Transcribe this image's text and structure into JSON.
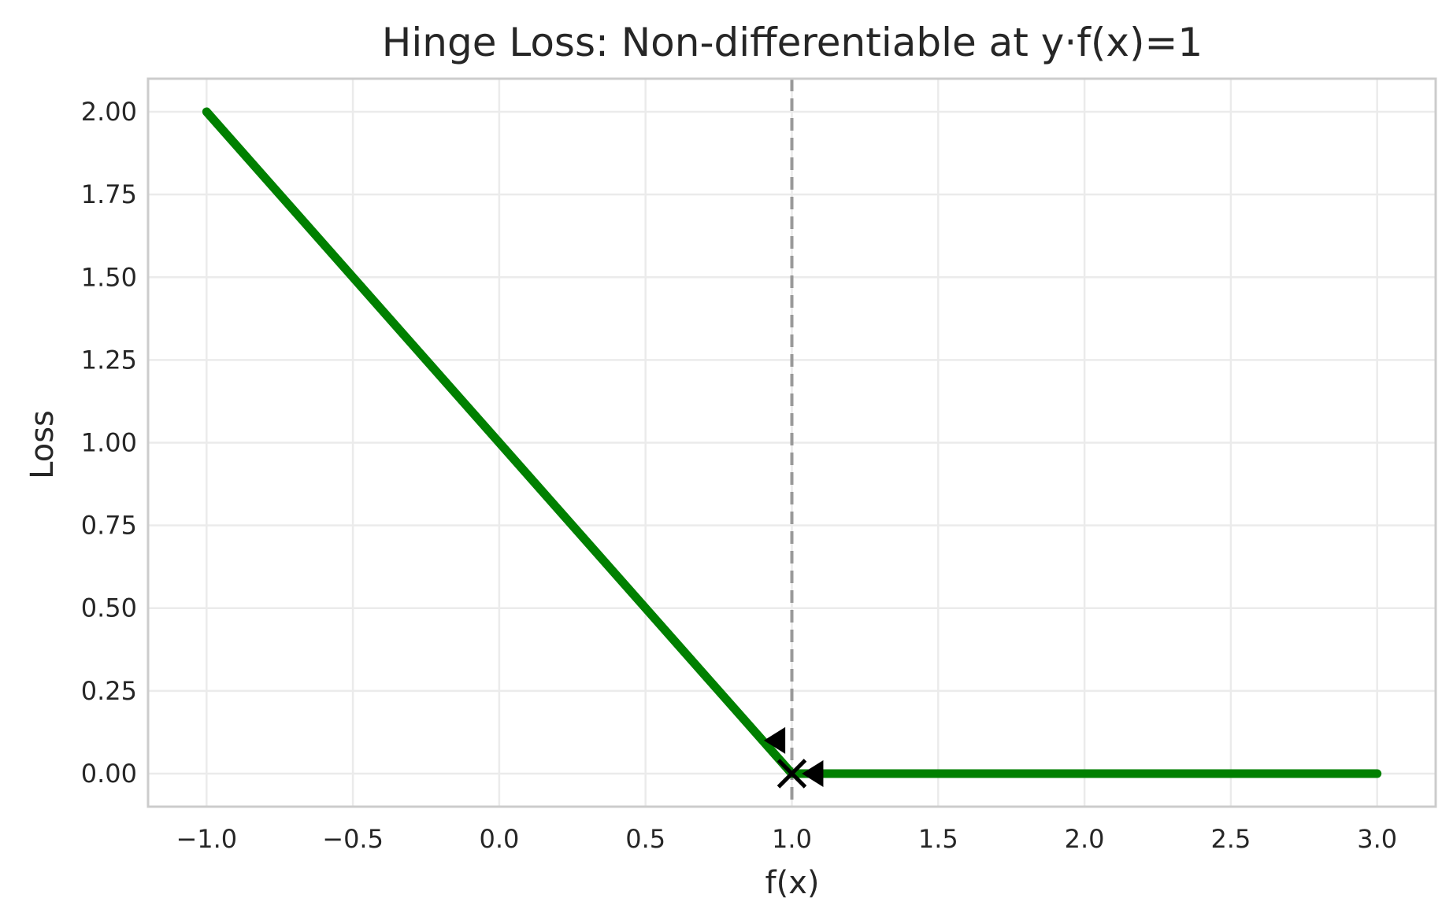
{
  "chart_data": {
    "type": "line",
    "title": "Hinge Loss: Non-differentiable at y·f(x)=1",
    "xlabel": "f(x)",
    "ylabel": "Loss",
    "xlim": [
      -1.2,
      3.2
    ],
    "ylim": [
      -0.1,
      2.1
    ],
    "x_ticks": [
      -1.0,
      -0.5,
      0.0,
      0.5,
      1.0,
      1.5,
      2.0,
      2.5,
      3.0
    ],
    "x_tick_labels": [
      "−1.0",
      "−0.5",
      "0.0",
      "0.5",
      "1.0",
      "1.5",
      "2.0",
      "2.5",
      "3.0"
    ],
    "y_ticks": [
      0.0,
      0.25,
      0.5,
      0.75,
      1.0,
      1.25,
      1.5,
      1.75,
      2.0
    ],
    "y_tick_labels": [
      "0.00",
      "0.25",
      "0.50",
      "0.75",
      "1.00",
      "1.25",
      "1.50",
      "1.75",
      "2.00"
    ],
    "grid": true,
    "series": [
      {
        "color": "#008000",
        "x": [
          -1.0,
          1.0,
          3.0
        ],
        "y": [
          2.0,
          0.0,
          0.0
        ]
      }
    ],
    "vline": {
      "x": 1.0,
      "color": "#999999",
      "style": "dashed"
    },
    "markers": [
      {
        "shape": "triangle-left",
        "x": 0.95,
        "y": 0.1,
        "color": "#000000"
      },
      {
        "shape": "triangle-left",
        "x": 1.08,
        "y": 0.0,
        "color": "#000000"
      },
      {
        "shape": "x",
        "x": 1.0,
        "y": 0.0,
        "color": "#000000"
      }
    ]
  }
}
